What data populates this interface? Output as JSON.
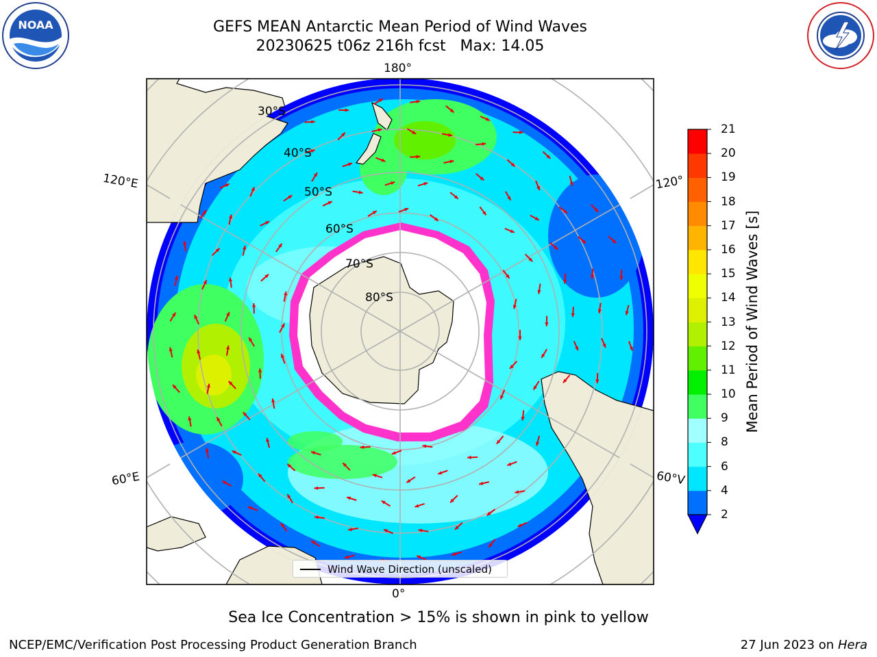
{
  "header": {
    "title_line1": "GEFS MEAN Antarctic Mean Period of Wind Waves",
    "title_line2": "20230625 t06z 216h fcst   Max: 14.05"
  },
  "logos": {
    "left": "noaa-logo",
    "right": "nws-logo"
  },
  "map": {
    "longitude_labels": {
      "top": "180°",
      "bottom": "0°",
      "upper_left": "120°E",
      "lower_left": "60°E",
      "upper_right": "120°",
      "lower_right": "60°V"
    },
    "latitude_labels": [
      "30°S",
      "40°S",
      "50°S",
      "60°S",
      "70°S",
      "80°S"
    ],
    "colors": {
      "land": "#efedd9",
      "ice": "#ffffff",
      "grid": "#b0b0b0",
      "arrow": "#e8000b",
      "ice_edge": "#ff33cc"
    }
  },
  "legend": {
    "label": "Wind Wave Direction (unscaled)"
  },
  "colorbar": {
    "label": "Mean Period of Wind Waves [s]",
    "ticks": [
      "2",
      "4",
      "6",
      "8",
      "9",
      "10",
      "11",
      "12",
      "13",
      "14",
      "15",
      "16",
      "17",
      "18",
      "19",
      "20",
      "21"
    ],
    "colors": [
      "#0070ff",
      "#00e6ff",
      "#4dffff",
      "#a0ffff",
      "#40ff60",
      "#00f000",
      "#60f000",
      "#b0f000",
      "#dcf000",
      "#f0ff00",
      "#ffe600",
      "#ffb400",
      "#ff8c00",
      "#ff6000",
      "#ff3800",
      "#ff0000"
    ],
    "extend_color": "#0000ff"
  },
  "annotation": "Sea Ice Concentration > 15% is shown in pink to yellow",
  "footer": {
    "left": "NCEP/EMC/Verification Post Processing Product Generation Branch",
    "right_prefix": "27 Jun 2023 on",
    "right_machine": "Hera"
  }
}
